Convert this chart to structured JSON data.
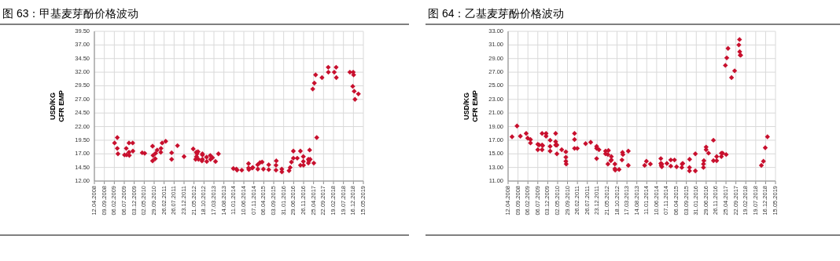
{
  "chart_data": [
    {
      "type": "scatter",
      "title": "图 63：甲基麦芽酚价格波动",
      "ylabel": "USD/KG\nCFR EMP",
      "marker": "diamond",
      "grid": true,
      "xlim": [
        "2008-04-12",
        "2019-05-15"
      ],
      "xticks": [
        {
          "value": "2008-04-12",
          "label": "12.04.2008"
        },
        {
          "value": "2008-09-09",
          "label": "09.09.2008"
        },
        {
          "value": "2009-02-06",
          "label": "06.02.2009"
        },
        {
          "value": "2009-07-06",
          "label": "06.07.2009"
        },
        {
          "value": "2009-12-03",
          "label": "03.12.2009"
        },
        {
          "value": "2010-05-02",
          "label": "02.05.2010"
        },
        {
          "value": "2010-09-29",
          "label": "29.09.2010"
        },
        {
          "value": "2011-02-26",
          "label": "26.02.2011"
        },
        {
          "value": "2011-07-26",
          "label": "26.07.2011"
        },
        {
          "value": "2011-12-23",
          "label": "23.12.2011"
        },
        {
          "value": "2012-05-21",
          "label": "21.05.2012"
        },
        {
          "value": "2012-10-18",
          "label": "18.10.2012"
        },
        {
          "value": "2013-03-17",
          "label": "17.03.2013"
        },
        {
          "value": "2013-08-14",
          "label": "14.08.2013"
        },
        {
          "value": "2014-01-11",
          "label": "11.01.2014"
        },
        {
          "value": "2014-06-10",
          "label": "10.06.2014"
        },
        {
          "value": "2014-11-07",
          "label": "07.11.2014"
        },
        {
          "value": "2015-04-06",
          "label": "06.04.2015"
        },
        {
          "value": "2015-09-03",
          "label": "03.09.2015"
        },
        {
          "value": "2016-01-31",
          "label": "31.01.2016"
        },
        {
          "value": "2016-06-29",
          "label": "29.06.2016"
        },
        {
          "value": "2016-11-26",
          "label": "26.11.2016"
        },
        {
          "value": "2017-04-25",
          "label": "25.04.2017"
        },
        {
          "value": "2017-09-22",
          "label": "22.09.2017"
        },
        {
          "value": "2018-02-19",
          "label": "19.02.2018"
        },
        {
          "value": "2018-07-19",
          "label": "19.07.2018"
        },
        {
          "value": "2018-12-16",
          "label": "16.12.2018"
        },
        {
          "value": "2019-05-15",
          "label": "15.05.2019"
        }
      ],
      "ylim": [
        12,
        39.5
      ],
      "yticks": [
        {
          "value": 12,
          "label": "12.00"
        },
        {
          "value": 14.5,
          "label": "14.50"
        },
        {
          "value": 17,
          "label": "17.00"
        },
        {
          "value": 19.5,
          "label": "19.50"
        },
        {
          "value": 22,
          "label": "22.00"
        },
        {
          "value": 24.5,
          "label": "24.50"
        },
        {
          "value": 27,
          "label": "27.00"
        },
        {
          "value": 29.5,
          "label": "29.50"
        },
        {
          "value": 32,
          "label": "32.00"
        },
        {
          "value": 34.5,
          "label": "34.50"
        },
        {
          "value": 37,
          "label": "37.00"
        },
        {
          "value": 39.5,
          "label": "39.50"
        }
      ],
      "series": [
        {
          "color": "#c8102e",
          "x": [
            "2009-02-10",
            "2009-03-23",
            "2009-03-23",
            "2009-04-02",
            "2009-07-10",
            "2009-08-05",
            "2009-08-10",
            "2009-09-15",
            "2009-09-15",
            "2009-09-20",
            "2009-11-10",
            "2009-11-13",
            "2010-04-02",
            "2010-05-10",
            "2010-09-05",
            "2010-09-05",
            "2010-09-12",
            "2010-10-15",
            "2010-10-20",
            "2010-11-13",
            "2011-01-07",
            "2011-01-10",
            "2011-01-27",
            "2011-03-22",
            "2011-06-19",
            "2011-06-19",
            "2011-09-15",
            "2011-12-23",
            "2012-05-09",
            "2012-06-14",
            "2012-06-25",
            "2012-06-28",
            "2012-07-05",
            "2012-09-18",
            "2012-09-25",
            "2012-07-20",
            "2012-07-27",
            "2012-09-24",
            "2012-09-24",
            "2012-11-26",
            "2012-11-29",
            "2013-01-21",
            "2013-01-25",
            "2013-02-24",
            "2013-04-10",
            "2013-05-24",
            "2014-01-03",
            "2014-02-19",
            "2014-02-28",
            "2014-05-10",
            "2014-08-20",
            "2014-08-20",
            "2014-08-25",
            "2014-10-14",
            "2014-10-23",
            "2015-01-04",
            "2015-01-07",
            "2015-02-08",
            "2015-03-12",
            "2015-04-01",
            "2015-06-20",
            "2015-06-20",
            "2015-10-08",
            "2015-10-08",
            "2015-10-12",
            "2016-01-03",
            "2016-01-04",
            "2016-04-21",
            "2016-05-08",
            "2016-05-27",
            "2016-06-25",
            "2016-06-25",
            "2016-08-23",
            "2016-10-09",
            "2016-10-09",
            "2016-11-22",
            "2016-11-22",
            "2016-11-25",
            "2017-02-06",
            "2017-02-06",
            "2017-02-14",
            "2017-02-25",
            "2017-03-05",
            "2017-04-29",
            "2017-04-13",
            "2017-05-07",
            "2017-05-26",
            "2017-06-12",
            "2017-08-30",
            "2017-12-02",
            "2017-12-04",
            "2018-03-03",
            "2018-03-31",
            "2018-04-03",
            "2018-10-24",
            "2018-12-13",
            "2018-12-19",
            "2018-12-06",
            "2018-12-28",
            "2019-01-09",
            "2019-03-01"
          ],
          "values": [
            19.0,
            20.0,
            18.0,
            17.0,
            16.8,
            18.0,
            16.8,
            19.0,
            17.3,
            16.7,
            19.0,
            17.5,
            17.2,
            17.1,
            18.4,
            15.7,
            16.7,
            16.1,
            17.1,
            17.7,
            17.3,
            18.0,
            19.0,
            19.3,
            17.2,
            16.0,
            18.5,
            16.5,
            17.9,
            16.0,
            17.3,
            16.5,
            17.0,
            15.7,
            16.8,
            17.4,
            16.0,
            17.0,
            16.0,
            16.4,
            15.6,
            16.7,
            16.0,
            16.3,
            15.6,
            17.0,
            14.3,
            14.2,
            14.0,
            14.0,
            15.2,
            14.4,
            14.1,
            14.4,
            14.5,
            15.0,
            14.2,
            15.4,
            15.5,
            14.2,
            15.0,
            14.1,
            14.0,
            14.9,
            15.7,
            14.2,
            13.7,
            13.9,
            14.5,
            15.5,
            16.2,
            17.5,
            16.2,
            17.5,
            14.9,
            16.5,
            15.6,
            14.9,
            16.0,
            15.3,
            15.7,
            17.7,
            16.0,
            15.3,
            28.9,
            30.0,
            31.5,
            20.0,
            31.0,
            32.9,
            32.0,
            32.0,
            32.9,
            31.0,
            32.0,
            32.0,
            31.5,
            29.4,
            28.5,
            27.0,
            28.0
          ]
        }
      ]
    },
    {
      "type": "scatter",
      "title": "图 64：乙基麦芽酚价格波动",
      "ylabel": "USD/KG\nCFR EMP",
      "marker": "diamond",
      "grid": true,
      "xlim": [
        "2008-04-12",
        "2019-05-15"
      ],
      "xticks": [
        {
          "value": "2008-04-12",
          "label": "12.04.2008"
        },
        {
          "value": "2008-09-09",
          "label": "09.09.2008"
        },
        {
          "value": "2009-02-06",
          "label": "06.02.2009"
        },
        {
          "value": "2009-07-06",
          "label": "06.07.2009"
        },
        {
          "value": "2009-12-03",
          "label": "03.12.2009"
        },
        {
          "value": "2010-05-02",
          "label": "02.05.2010"
        },
        {
          "value": "2010-09-29",
          "label": "29.09.2010"
        },
        {
          "value": "2011-02-26",
          "label": "26.02.2011"
        },
        {
          "value": "2011-07-26",
          "label": "26.07.2011"
        },
        {
          "value": "2011-12-23",
          "label": "23.12.2011"
        },
        {
          "value": "2012-05-21",
          "label": "21.05.2012"
        },
        {
          "value": "2012-10-18",
          "label": "18.10.2012"
        },
        {
          "value": "2013-03-17",
          "label": "17.03.2013"
        },
        {
          "value": "2013-08-14",
          "label": "14.08.2013"
        },
        {
          "value": "2014-01-11",
          "label": "11.01.2014"
        },
        {
          "value": "2014-06-10",
          "label": "10.06.2014"
        },
        {
          "value": "2014-11-07",
          "label": "07.11.2014"
        },
        {
          "value": "2015-04-06",
          "label": "06.04.2015"
        },
        {
          "value": "2015-09-03",
          "label": "03.09.2015"
        },
        {
          "value": "2016-01-31",
          "label": "31.01.2016"
        },
        {
          "value": "2016-06-29",
          "label": "29.06.2016"
        },
        {
          "value": "2016-11-26",
          "label": "26.11.2016"
        },
        {
          "value": "2017-04-25",
          "label": "25.04.2017"
        },
        {
          "value": "2017-09-22",
          "label": "22.09.2017"
        },
        {
          "value": "2018-02-19",
          "label": "19.02.2018"
        },
        {
          "value": "2018-07-19",
          "label": "19.07.2018"
        },
        {
          "value": "2018-12-16",
          "label": "16.12.2018"
        },
        {
          "value": "2019-05-15",
          "label": "15.05.2019"
        }
      ],
      "ylim": [
        11,
        33
      ],
      "yticks": [
        {
          "value": 11,
          "label": "11.00"
        },
        {
          "value": 13,
          "label": "13.00"
        },
        {
          "value": 15,
          "label": "15.00"
        },
        {
          "value": 17,
          "label": "17.00"
        },
        {
          "value": 19,
          "label": "19.00"
        },
        {
          "value": 21,
          "label": "21.00"
        },
        {
          "value": 23,
          "label": "23.00"
        },
        {
          "value": 25,
          "label": "25.00"
        },
        {
          "value": 27,
          "label": "27.00"
        },
        {
          "value": 29,
          "label": "29.00"
        },
        {
          "value": 31,
          "label": "31.00"
        },
        {
          "value": 33,
          "label": "33.00"
        }
      ],
      "series": [
        {
          "color": "#c8102e",
          "x": [
            "2008-06-11",
            "2008-08-25",
            "2008-10-15",
            "2009-01-11",
            "2009-02-03",
            "2009-03-17",
            "2009-03-17",
            "2009-07-06",
            "2009-07-06",
            "2009-07-24",
            "2009-09-09",
            "2009-09-09",
            "2009-09-09",
            "2009-09-18",
            "2009-11-08",
            "2009-11-08",
            "2010-01-09",
            "2010-01-09",
            "2010-01-09",
            "2010-04-02",
            "2010-04-02",
            "2010-04-02",
            "2010-04-14",
            "2010-04-21",
            "2010-04-21",
            "2010-07-03",
            "2010-09-04",
            "2010-09-04",
            "2010-09-04",
            "2010-09-09",
            "2011-01-13",
            "2011-01-13",
            "2011-01-13",
            "2011-02-24",
            "2011-06-30",
            "2011-09-15",
            "2011-12-14",
            "2011-12-14",
            "2011-12-14",
            "2012-01-19",
            "2012-04-27",
            "2012-04-27",
            "2012-06-02",
            "2012-06-10",
            "2012-06-02",
            "2012-07-16",
            "2012-07-24",
            "2012-07-24",
            "2012-09-15",
            "2012-09-15",
            "2012-09-20",
            "2012-11-18",
            "2013-01-01",
            "2013-01-09",
            "2013-01-15",
            "2013-04-07",
            "2013-04-07",
            "2013-12-10",
            "2014-01-06",
            "2014-03-07",
            "2014-08-12",
            "2014-08-12",
            "2014-08-18",
            "2014-08-27",
            "2014-08-27",
            "2014-11-12",
            "2015-01-10",
            "2015-01-10",
            "2015-03-07",
            "2015-04-08",
            "2015-06-26",
            "2015-07-01",
            "2015-07-10",
            "2015-10-22",
            "2015-10-20",
            "2015-10-20",
            "2016-01-17",
            "2016-01-17",
            "2016-05-19",
            "2016-05-19",
            "2016-05-25",
            "2016-06-28",
            "2016-06-28",
            "2016-08-04",
            "2016-10-17",
            "2016-10-17",
            "2016-12-05",
            "2016-12-05",
            "2017-02-14",
            "2017-02-14",
            "2017-03-05",
            "2017-04-28",
            "2017-04-16",
            "2017-05-07",
            "2017-05-26",
            "2017-07-18",
            "2017-09-03",
            "2017-11-06",
            "2017-11-16",
            "2017-11-19",
            "2017-11-26",
            "2017-12-04",
            "2018-10-13",
            "2018-11-13",
            "2018-12-11",
            "2019-01-13"
          ],
          "values": [
            17.5,
            19.1,
            17.6,
            18.0,
            17.3,
            17.1,
            16.6,
            16.4,
            15.6,
            16.3,
            16.3,
            18.0,
            15.6,
            16.2,
            18.0,
            17.6,
            17.0,
            16.1,
            15.4,
            18.0,
            16.8,
            16.3,
            16.3,
            16.3,
            15.0,
            15.6,
            15.3,
            14.5,
            13.9,
            13.5,
            18.0,
            17.1,
            15.8,
            15.8,
            16.5,
            16.7,
            15.8,
            16.1,
            14.3,
            15.6,
            15.4,
            15.0,
            14.9,
            15.5,
            13.5,
            14.0,
            14.6,
            14.1,
            13.5,
            12.8,
            12.6,
            12.7,
            14.1,
            15.2,
            14.9,
            15.4,
            13.3,
            13.3,
            13.9,
            13.5,
            14.3,
            13.6,
            13.3,
            13.5,
            13.1,
            13.6,
            14.1,
            13.2,
            14.1,
            13.1,
            13.0,
            13.5,
            13.6,
            14.2,
            13.0,
            12.5,
            15.0,
            12.5,
            13.0,
            13.5,
            14.0,
            16.0,
            15.6,
            15.1,
            17.0,
            14.0,
            14.6,
            14.0,
            14.6,
            15.1,
            15.1,
            14.9,
            28.0,
            29.1,
            30.5,
            26.2,
            27.2,
            31.0,
            31.8,
            30.0,
            29.5,
            29.5,
            13.3,
            13.9,
            15.9,
            17.5
          ]
        }
      ]
    }
  ]
}
